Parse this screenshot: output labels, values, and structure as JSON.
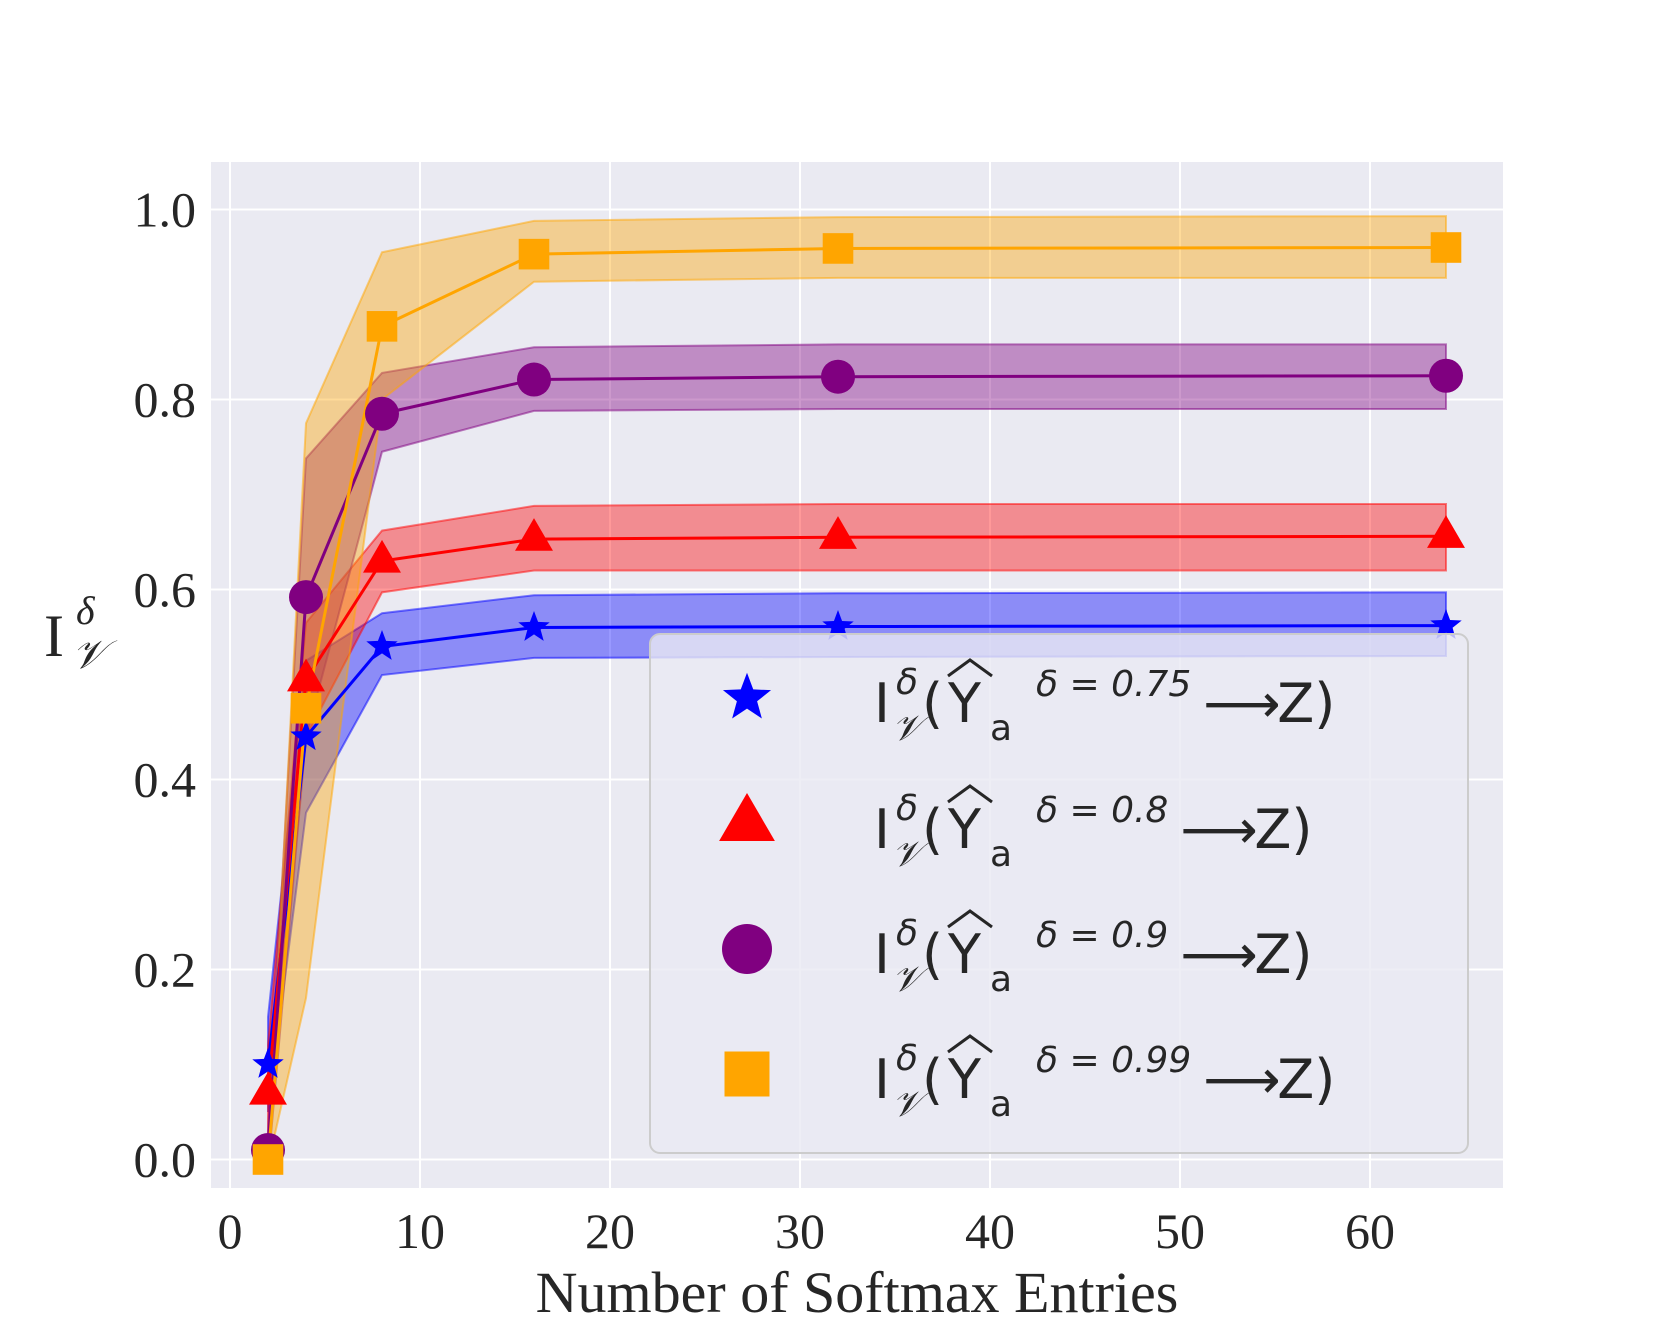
{
  "chart_data": {
    "type": "line",
    "xlabel": "Number of Softmax Entries",
    "ylabel": {
      "main": "I",
      "sup": "δ",
      "sub": "𝒱"
    },
    "xlim": [
      -1,
      67
    ],
    "ylim": [
      -0.03,
      1.05
    ],
    "xticks": [
      0,
      10,
      20,
      30,
      40,
      50,
      60
    ],
    "yticks": [
      0.0,
      0.2,
      0.4,
      0.6,
      0.8,
      1.0
    ],
    "xtick_labels": [
      "0",
      "10",
      "20",
      "30",
      "40",
      "50",
      "60"
    ],
    "ytick_labels": [
      "0.0",
      "0.2",
      "0.4",
      "0.6",
      "0.8",
      "1.0"
    ],
    "grid": true,
    "background": "#eaeaf2",
    "legend_position": "lower-right",
    "x": [
      2,
      4,
      8,
      16,
      32,
      64
    ],
    "series": [
      {
        "name": "I𝒱δ(Ŷa δ = 0.75 ⟶ Z)",
        "legend": {
          "prefix": "I",
          "sup": "δ",
          "sub": "𝒱",
          "open": "(",
          "hat": "Y",
          "hat_sub": "a",
          "delta": "δ = 0.75",
          "arrow": "⟶",
          "target": "Z)"
        },
        "marker": "star",
        "color": "#0000ff",
        "values": [
          0.1,
          0.445,
          0.54,
          0.56,
          0.561,
          0.562
        ],
        "lower": [
          0.05,
          0.365,
          0.51,
          0.528,
          0.529,
          0.53
        ],
        "upper": [
          0.15,
          0.525,
          0.575,
          0.594,
          0.596,
          0.597
        ]
      },
      {
        "name": "I𝒱δ(Ŷa δ = 0.8 ⟶ Z)",
        "legend": {
          "prefix": "I",
          "sup": "δ",
          "sub": "𝒱",
          "open": "(",
          "hat": "Y",
          "hat_sub": "a",
          "delta": "δ = 0.8",
          "arrow": "⟶",
          "target": "Z)"
        },
        "marker": "triangle",
        "color": "#ff0000",
        "values": [
          0.07,
          0.505,
          0.63,
          0.653,
          0.655,
          0.656
        ],
        "lower": [
          0.02,
          0.445,
          0.597,
          0.62,
          0.62,
          0.62
        ],
        "upper": [
          0.12,
          0.565,
          0.662,
          0.688,
          0.69,
          0.69
        ]
      },
      {
        "name": "I𝒱δ(Ŷa δ = 0.9 ⟶ Z)",
        "legend": {
          "prefix": "I",
          "sup": "δ",
          "sub": "𝒱",
          "open": "(",
          "hat": "Y",
          "hat_sub": "a",
          "delta": "δ = 0.9",
          "arrow": "⟶",
          "target": "Z)"
        },
        "marker": "circle",
        "color": "#800080",
        "values": [
          0.01,
          0.592,
          0.785,
          0.821,
          0.824,
          0.825
        ],
        "lower": [
          -0.01,
          0.445,
          0.745,
          0.788,
          0.79,
          0.79
        ],
        "upper": [
          0.03,
          0.738,
          0.828,
          0.855,
          0.858,
          0.858
        ]
      },
      {
        "name": "I𝒱δ(Ŷa δ = 0.99 ⟶ Z)",
        "legend": {
          "prefix": "I",
          "sup": "δ",
          "sub": "𝒱",
          "open": "(",
          "hat": "Y",
          "hat_sub": "a",
          "delta": "δ = 0.99",
          "arrow": "⟶",
          "target": "Z)"
        },
        "marker": "square",
        "color": "#ffa500",
        "values": [
          0.0,
          0.475,
          0.877,
          0.953,
          0.959,
          0.96
        ],
        "lower": [
          -0.005,
          0.17,
          0.8,
          0.924,
          0.928,
          0.928
        ],
        "upper": [
          0.005,
          0.775,
          0.955,
          0.988,
          0.992,
          0.993
        ]
      }
    ]
  }
}
